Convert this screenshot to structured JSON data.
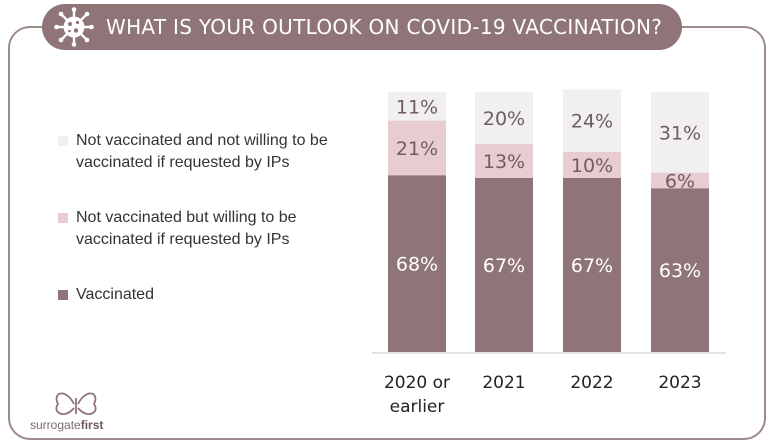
{
  "title": "WHAT IS YOUR OUTLOOK ON COVID-19 VACCINATION?",
  "icon": "virus-icon",
  "legend": [
    {
      "label": "Not vaccinated and not willing to be vaccinated if requested by IPs",
      "color": "#f1eff0"
    },
    {
      "label": "Not vaccinated but willing to be vaccinated if requested by IPs",
      "color": "#e8cdd0"
    },
    {
      "label": "Vaccinated",
      "color": "#8f7478"
    }
  ],
  "chart_data": {
    "type": "bar",
    "stacked": true,
    "categories": [
      "2020 or earlier",
      "2021",
      "2022",
      "2023"
    ],
    "series": [
      {
        "name": "Vaccinated",
        "values": [
          68,
          67,
          67,
          63
        ],
        "color": "#8f7478"
      },
      {
        "name": "Not vaccinated but willing to be vaccinated if requested by IPs",
        "values": [
          21,
          13,
          10,
          6
        ],
        "color": "#e8cdd0"
      },
      {
        "name": "Not vaccinated and not willing to be vaccinated if requested by IPs",
        "values": [
          11,
          20,
          24,
          31
        ],
        "color": "#f1eff0"
      }
    ],
    "value_labels": [
      [
        "68%",
        "67%",
        "67%",
        "63%"
      ],
      [
        "21%",
        "13%",
        "10%",
        "6%"
      ],
      [
        "11%",
        "20%",
        "24%",
        "31%"
      ]
    ],
    "category_labels": [
      [
        "2020 or",
        "earlier"
      ],
      [
        "2021"
      ],
      [
        "2022"
      ],
      [
        "2023"
      ]
    ],
    "ylim": [
      0,
      100
    ],
    "legend_position": "left",
    "grid": false
  },
  "logo": {
    "prefix": "surrogate",
    "suffix": "first"
  }
}
